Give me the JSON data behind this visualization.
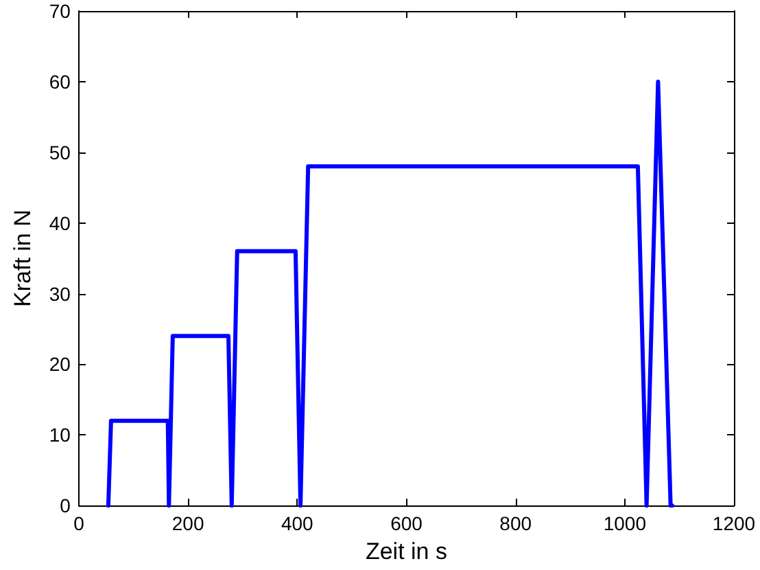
{
  "chart_data": {
    "type": "line",
    "xlabel": "Zeit in s",
    "ylabel": "Kraft in N",
    "x": [
      54,
      59,
      163,
      165,
      172,
      274,
      280,
      290,
      397,
      406,
      420,
      1024,
      1040,
      1061,
      1084,
      1087
    ],
    "series": [
      {
        "color": "#0000ff",
        "values": [
          0,
          12,
          12,
          0,
          24,
          24,
          0,
          36,
          36,
          0,
          48,
          48,
          0,
          60,
          0,
          0
        ]
      }
    ],
    "xlim": [
      0,
      1200
    ],
    "xticks": [
      0,
      200,
      400,
      600,
      800,
      1000,
      1200
    ],
    "ylim": [
      0,
      70
    ],
    "yticks": [
      0,
      10,
      20,
      30,
      40,
      50,
      60,
      70
    ],
    "grid": false,
    "marker": "none",
    "line_style": "solid"
  }
}
